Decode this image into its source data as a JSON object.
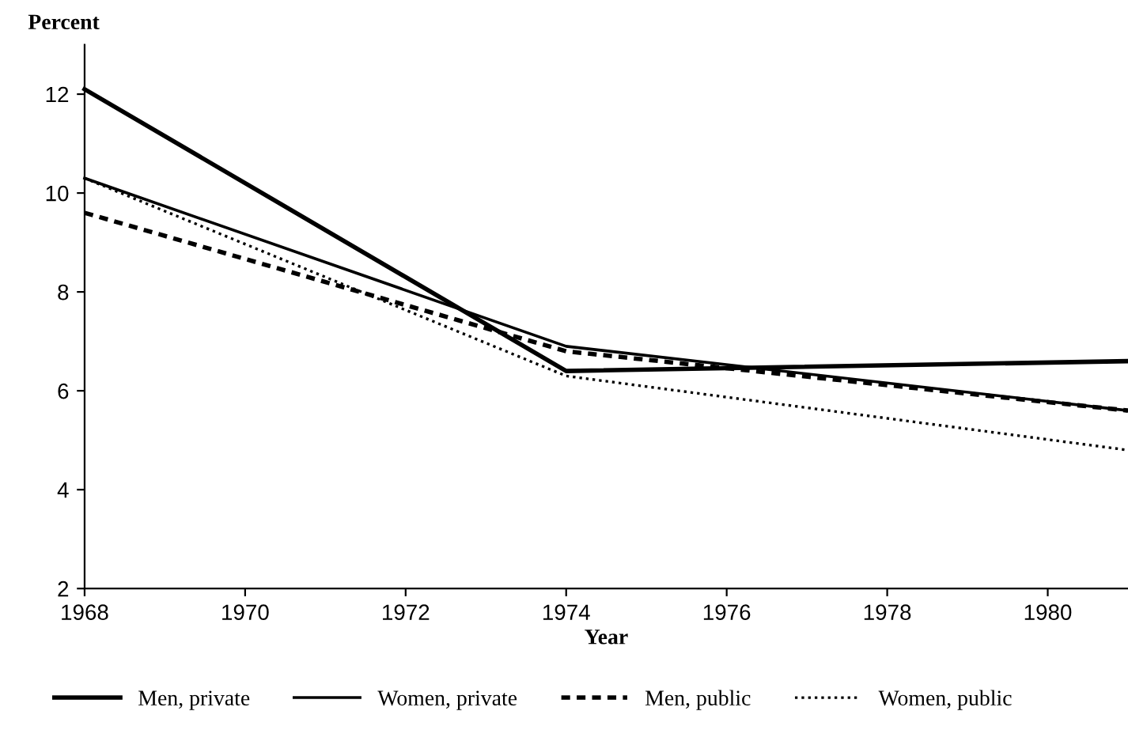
{
  "chart_data": {
    "type": "line",
    "ylabel": "Percent",
    "xlabel": "Year",
    "x": [
      1968,
      1974,
      1981
    ],
    "series": [
      {
        "name": "Men, private",
        "color": "#000000",
        "line_style": "solid",
        "values": [
          12.1,
          6.4,
          6.6
        ]
      },
      {
        "name": "Women, private",
        "color": "#000000",
        "line_style": "solid",
        "values": [
          10.3,
          6.9,
          5.6
        ]
      },
      {
        "name": "Men, public",
        "color": "#000000",
        "line_style": "dashed",
        "values": [
          9.6,
          6.8,
          5.6
        ]
      },
      {
        "name": "Women, public",
        "color": "#000000",
        "line_style": "dotted",
        "values": [
          10.3,
          6.3,
          4.8
        ]
      }
    ],
    "xlim": [
      1968,
      1981
    ],
    "ylim": [
      2,
      13
    ],
    "xticks": [
      1968,
      1970,
      1972,
      1974,
      1976,
      1978,
      1980
    ],
    "yticks": [
      2,
      4,
      6,
      8,
      10,
      12
    ],
    "grid": false,
    "legend": "bottom",
    "marker": "none"
  }
}
